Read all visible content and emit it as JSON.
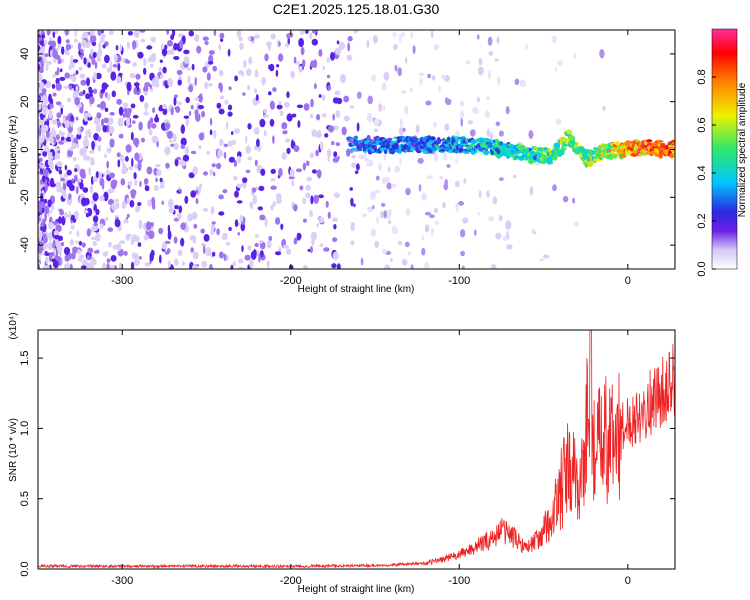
{
  "title": "C2E1.2025.125.18.01.G30",
  "chart_data": [
    {
      "type": "heatmap",
      "xlabel": "Height of straight line (km)",
      "ylabel": "Frequency (Hz)",
      "xlim": [
        -350,
        28
      ],
      "ylim": [
        -50,
        50
      ],
      "xticks": [
        "-300",
        "-200",
        "-100",
        "0"
      ],
      "xtick_values": [
        -300,
        -200,
        -100,
        0
      ],
      "yticks": [
        "-40",
        "-20",
        "0",
        "20",
        "40"
      ],
      "ytick_values": [
        -40,
        -20,
        0,
        20,
        40
      ],
      "colorbar": {
        "label": "Normalized spectral amplitude",
        "range": [
          0,
          1
        ],
        "ticks": [
          "0.0",
          "0.2",
          "0.4",
          "0.6",
          "0.8"
        ],
        "tick_values": [
          0.0,
          0.2,
          0.4,
          0.6,
          0.8
        ],
        "colors": [
          "#ffffff",
          "#d6c8f5",
          "#6a1ee8",
          "#2a2ae0",
          "#00c8ff",
          "#2ee86a",
          "#f0f000",
          "#ff8000",
          "#ff0000",
          "#ff2fa0"
        ]
      },
      "signal_ridge": [
        {
          "x": -160,
          "y": 2,
          "level": 0.35
        },
        {
          "x": -140,
          "y": 2,
          "level": 0.4
        },
        {
          "x": -120,
          "y": 2,
          "level": 0.4
        },
        {
          "x": -100,
          "y": 2,
          "level": 0.45
        },
        {
          "x": -80,
          "y": 1,
          "level": 0.5
        },
        {
          "x": -60,
          "y": -2,
          "level": 0.55
        },
        {
          "x": -45,
          "y": -3,
          "level": 0.6
        },
        {
          "x": -35,
          "y": 5,
          "level": 0.65
        },
        {
          "x": -25,
          "y": -4,
          "level": 0.6
        },
        {
          "x": -15,
          "y": -1,
          "level": 0.7
        },
        {
          "x": 0,
          "y": 0,
          "level": 0.9
        },
        {
          "x": 10,
          "y": 1,
          "level": 0.95
        },
        {
          "x": 25,
          "y": 0,
          "level": 1.0
        }
      ]
    },
    {
      "type": "line",
      "xlabel": "Height of straight line (km)",
      "ylabel": "SNR (10 * v/v)",
      "multiplier": "(x10⁴)",
      "xlim": [
        -350,
        28
      ],
      "ylim": [
        0,
        1.7
      ],
      "xticks": [
        "-300",
        "-200",
        "-100",
        "0"
      ],
      "xtick_values": [
        -300,
        -200,
        -100,
        0
      ],
      "yticks": [
        "0.0",
        "0.5",
        "1.0",
        "1.5"
      ],
      "ytick_values": [
        0.0,
        0.5,
        1.0,
        1.5
      ],
      "color": "#ee2222",
      "series": [
        {
          "x": [
            -350,
            -300,
            -250,
            -200,
            -150,
            -120,
            -100,
            -80,
            -75,
            -70,
            -60,
            -50,
            -45,
            -40,
            -35,
            -30,
            -25,
            -22,
            -20,
            -15,
            -10,
            -5,
            0,
            10,
            20,
            28
          ],
          "y": [
            0.02,
            0.02,
            0.02,
            0.02,
            0.025,
            0.04,
            0.1,
            0.22,
            0.28,
            0.25,
            0.15,
            0.25,
            0.35,
            0.55,
            0.7,
            0.6,
            0.8,
            1.7,
            0.8,
            0.9,
            0.9,
            0.95,
            1.05,
            1.15,
            1.25,
            1.35
          ]
        }
      ]
    }
  ]
}
